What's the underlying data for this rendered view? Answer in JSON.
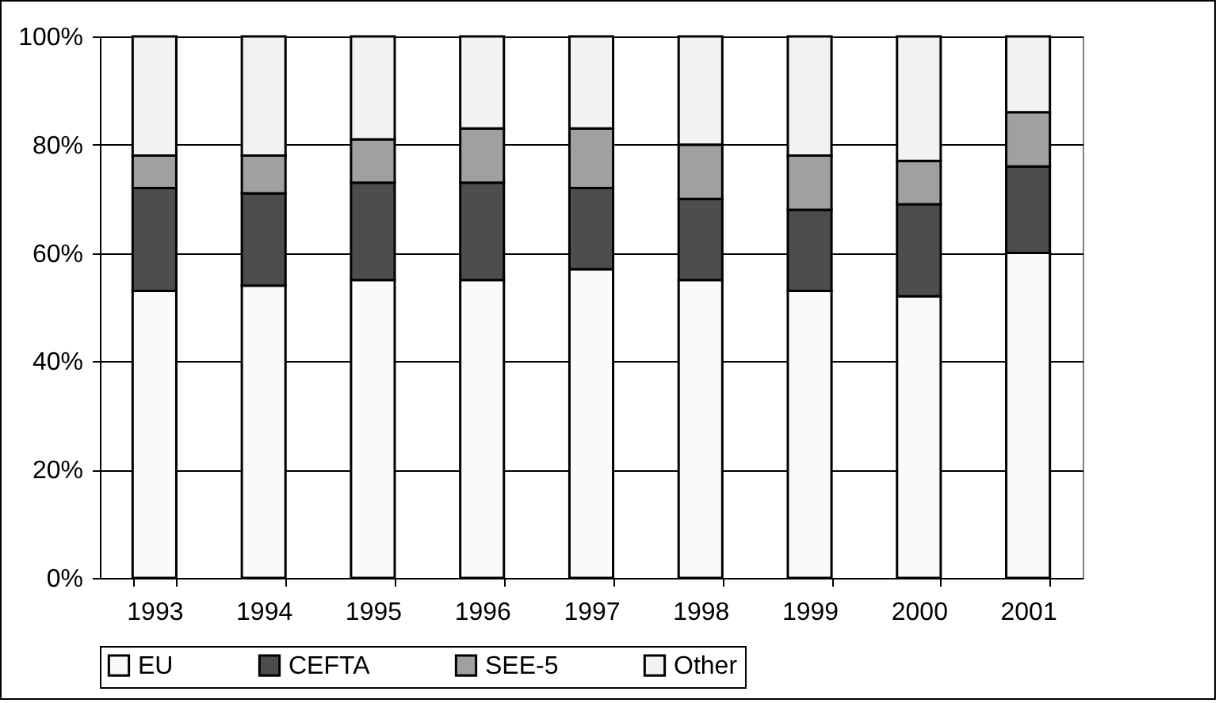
{
  "chart_data": {
    "type": "bar",
    "stacked": true,
    "categories": [
      "1993",
      "1994",
      "1995",
      "1996",
      "1997",
      "1998",
      "1999",
      "2000",
      "2001"
    ],
    "series": [
      {
        "name": "EU",
        "color": "#fafafa",
        "values": [
          53,
          54,
          55,
          55,
          57,
          55,
          53,
          52,
          60
        ]
      },
      {
        "name": "CEFTA",
        "color": "#4d4d4d",
        "values": [
          19,
          17,
          18,
          18,
          15,
          15,
          15,
          17,
          16
        ]
      },
      {
        "name": "SEE-5",
        "color": "#a0a0a0",
        "values": [
          6,
          7,
          8,
          10,
          11,
          10,
          10,
          8,
          10
        ]
      },
      {
        "name": "Other",
        "color": "#f2f2f2",
        "values": [
          22,
          22,
          19,
          17,
          17,
          20,
          22,
          23,
          14
        ]
      }
    ],
    "ylim": [
      0,
      100
    ],
    "yticks": [
      {
        "value": 0,
        "label": "0%"
      },
      {
        "value": 20,
        "label": "20%"
      },
      {
        "value": 40,
        "label": "40%"
      },
      {
        "value": 60,
        "label": "60%"
      },
      {
        "value": 80,
        "label": "80%"
      },
      {
        "value": 100,
        "label": "100%"
      }
    ],
    "grid": "y",
    "legend": "bottom"
  }
}
